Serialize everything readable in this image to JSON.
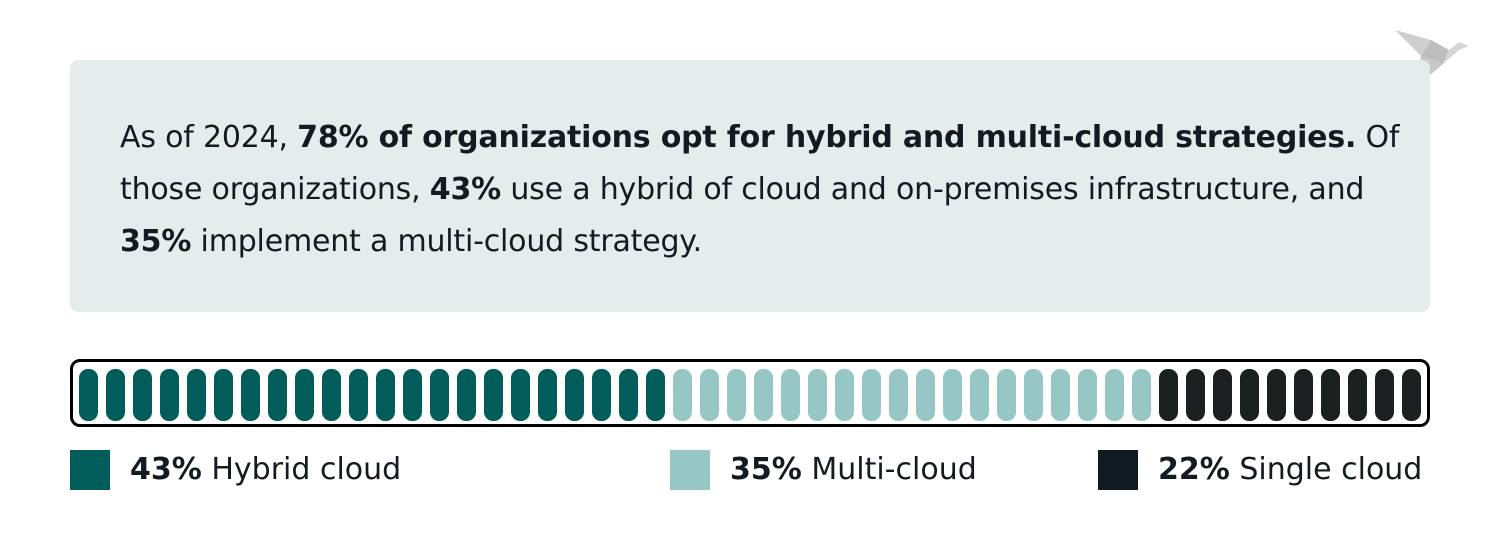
{
  "callout": {
    "intro": "As of 2024, ",
    "bold1": "78% of organizations opt for hybrid and multi-cloud strategies.",
    "mid1": " Of those organizations, ",
    "bold2": "43%",
    "mid2": " use a hybrid of cloud and on-premises infrastructure, and ",
    "bold3": "35%",
    "end": " implement a multi-cloud strategy."
  },
  "logo": {
    "icon": "origami-bird-icon",
    "color": "#c4c4c4"
  },
  "legend": [
    {
      "pct": "43%",
      "label": " Hybrid cloud",
      "color": "#025c59"
    },
    {
      "pct": "35%",
      "label": " Multi-cloud",
      "color": "#97c7c5"
    },
    {
      "pct": "22%",
      "label": " Single cloud",
      "color": "#1b1f20"
    }
  ],
  "chart_data": {
    "type": "bar",
    "subtype": "segmented-stacked-100",
    "title": "",
    "categories": [
      "Hybrid cloud",
      "Multi-cloud",
      "Single cloud"
    ],
    "values": [
      43,
      35,
      22
    ],
    "unit": "%",
    "segments_total": 50,
    "segments": [
      22,
      18,
      10
    ],
    "colors": [
      "#025c59",
      "#97c7c5",
      "#1b1f20"
    ],
    "legend_position": "bottom"
  }
}
